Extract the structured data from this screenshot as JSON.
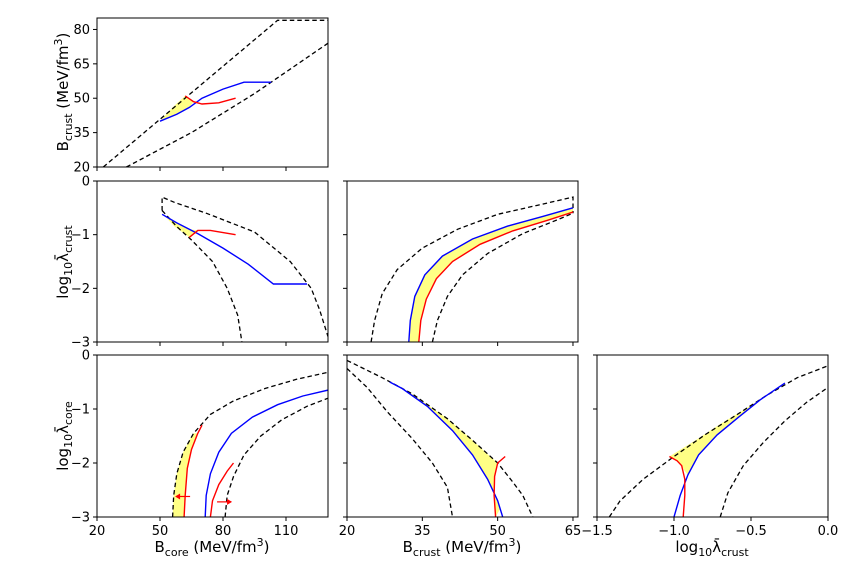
{
  "chart_data": {
    "type": "corner",
    "colors": {
      "region_fill": "#ffff66",
      "blue_curve": "#0000ff",
      "red_curve": "#ff0000",
      "bounds": "#000000"
    },
    "axes": {
      "B_core": {
        "label": "B",
        "sub": "core",
        "unit": " (MeV/fm",
        "unit_end": ")",
        "range": [
          20,
          130
        ],
        "ticks": [
          20,
          50,
          80,
          110
        ],
        "tick_labels": [
          "20",
          "50",
          "80",
          "110"
        ]
      },
      "B_crust": {
        "label": "B",
        "sub": "crust",
        "unit": " (MeV/fm",
        "unit_end": ")",
        "range": [
          20,
          85
        ],
        "ticks": [
          20,
          35,
          50,
          65,
          80
        ],
        "tick_labels": [
          "20",
          "35",
          "50",
          "65",
          "80"
        ],
        "x_ticks": [
          20,
          35,
          50,
          65
        ],
        "x_tick_labels": [
          "20",
          "35",
          "50",
          "65"
        ]
      },
      "lam_crust": {
        "label": "log",
        "sub10": "10",
        "sym": "λ̄",
        "sub": "crust",
        "range": [
          -3,
          0
        ],
        "ticks": [
          -3,
          -2,
          -1,
          0
        ],
        "tick_labels": [
          "−3",
          "−2",
          "−1",
          "0"
        ],
        "x_range": [
          -1.5,
          0
        ],
        "x_ticks": [
          -1.5,
          -1.0,
          -0.5,
          0.0
        ],
        "x_tick_labels": [
          "−1.5",
          "−1.0",
          "−0.5",
          "0.0"
        ]
      },
      "lam_core": {
        "label": "log",
        "sub10": "10",
        "sym": "λ̄",
        "sub": "core",
        "range": [
          -3,
          0
        ],
        "ticks": [
          -3,
          -2,
          -1,
          0
        ],
        "tick_labels": [
          "−3",
          "−2",
          "−1",
          "0"
        ]
      }
    },
    "panels": [
      {
        "id": "Bcore_vs_Bcrust",
        "x": "B_core",
        "y": "B_crust",
        "dashed": [
          [
            [
              23,
              20
            ],
            [
              106,
              84
            ],
            [
              130,
              84
            ]
          ],
          [
            [
              34,
              20
            ],
            [
              65,
              35
            ],
            [
              95,
              52
            ],
            [
              130,
              74
            ]
          ]
        ],
        "blue": [
          [
            50,
            40
          ],
          [
            58,
            43
          ],
          [
            64,
            46
          ],
          [
            70,
            50
          ],
          [
            80,
            54
          ],
          [
            90,
            57
          ],
          [
            103,
            57
          ]
        ],
        "red": [
          [
            62,
            51
          ],
          [
            66,
            48.5
          ],
          [
            70,
            47.5
          ],
          [
            78,
            48
          ],
          [
            86,
            50
          ]
        ],
        "region": [
          [
            50,
            40
          ],
          [
            58,
            43
          ],
          [
            64,
            46
          ],
          [
            66,
            48.5
          ],
          [
            62,
            51
          ],
          [
            56,
            46
          ]
        ]
      },
      {
        "id": "Bcore_vs_lamcrust",
        "x": "B_core",
        "y": "lam_crust",
        "dashed": [
          [
            [
              51,
              -0.55
            ],
            [
              51,
              -0.3
            ],
            [
              57,
              -0.4
            ],
            [
              72,
              -0.6
            ],
            [
              95,
              -0.95
            ],
            [
              112,
              -1.5
            ],
            [
              122,
              -2.0
            ],
            [
              126,
              -2.4
            ],
            [
              130,
              -2.9
            ]
          ],
          [
            [
              51,
              -0.55
            ],
            [
              58,
              -0.85
            ],
            [
              65,
              -1.1
            ],
            [
              75,
              -1.5
            ],
            [
              82,
              -2.0
            ],
            [
              87,
              -2.5
            ],
            [
              89,
              -3.0
            ]
          ]
        ],
        "blue": [
          [
            51,
            -0.62
          ],
          [
            58,
            -0.78
          ],
          [
            68,
            -0.98
          ],
          [
            80,
            -1.25
          ],
          [
            92,
            -1.55
          ],
          [
            104,
            -1.92
          ],
          [
            120,
            -1.92
          ]
        ],
        "red": [
          [
            64,
            -1.05
          ],
          [
            68,
            -0.92
          ],
          [
            74,
            -0.92
          ],
          [
            86,
            -1.0
          ]
        ],
        "region": [
          [
            51,
            -0.6
          ],
          [
            58,
            -0.78
          ],
          [
            64,
            -0.9
          ],
          [
            68,
            -0.92
          ],
          [
            64,
            -1.05
          ],
          [
            57,
            -0.85
          ]
        ]
      },
      {
        "id": "Bcrust_vs_lamcrust",
        "x": "B_crust",
        "y": "lam_crust",
        "dashed": [
          [
            [
              24.8,
              -3.0
            ],
            [
              25.5,
              -2.6
            ],
            [
              27,
              -2.1
            ],
            [
              30,
              -1.65
            ],
            [
              35,
              -1.25
            ],
            [
              42,
              -0.9
            ],
            [
              50,
              -0.62
            ],
            [
              58,
              -0.45
            ],
            [
              65,
              -0.3
            ],
            [
              65,
              -0.6
            ]
          ],
          [
            [
              37,
              -3.0
            ],
            [
              38,
              -2.6
            ],
            [
              40,
              -2.15
            ],
            [
              43,
              -1.75
            ],
            [
              48,
              -1.35
            ],
            [
              55,
              -0.98
            ],
            [
              62,
              -0.72
            ],
            [
              65,
              -0.6
            ]
          ]
        ],
        "blue": [
          [
            32.3,
            -3.0
          ],
          [
            32.6,
            -2.6
          ],
          [
            33.5,
            -2.15
          ],
          [
            35.5,
            -1.75
          ],
          [
            39,
            -1.4
          ],
          [
            45,
            -1.08
          ],
          [
            52,
            -0.84
          ],
          [
            59,
            -0.66
          ],
          [
            65,
            -0.5
          ]
        ],
        "red": [
          [
            34.3,
            -3.0
          ],
          [
            34.7,
            -2.6
          ],
          [
            35.8,
            -2.2
          ],
          [
            37.8,
            -1.82
          ],
          [
            41,
            -1.5
          ],
          [
            46.5,
            -1.18
          ],
          [
            53,
            -0.93
          ],
          [
            60,
            -0.73
          ],
          [
            65,
            -0.58
          ]
        ],
        "region": [
          [
            32.3,
            -3.0
          ],
          [
            32.6,
            -2.6
          ],
          [
            33.5,
            -2.15
          ],
          [
            35.5,
            -1.75
          ],
          [
            39,
            -1.4
          ],
          [
            45,
            -1.08
          ],
          [
            52,
            -0.84
          ],
          [
            59,
            -0.66
          ],
          [
            65,
            -0.5
          ],
          [
            65,
            -0.58
          ],
          [
            60,
            -0.73
          ],
          [
            53,
            -0.93
          ],
          [
            46.5,
            -1.18
          ],
          [
            41,
            -1.5
          ],
          [
            37.8,
            -1.82
          ],
          [
            35.8,
            -2.2
          ],
          [
            34.7,
            -2.6
          ],
          [
            34.3,
            -3.0
          ]
        ]
      },
      {
        "id": "Bcore_vs_lamcore",
        "x": "B_core",
        "y": "lam_core",
        "dashed": [
          [
            [
              56,
              -3.0
            ],
            [
              56.5,
              -2.6
            ],
            [
              58,
              -2.2
            ],
            [
              61,
              -1.8
            ],
            [
              66,
              -1.45
            ],
            [
              74,
              -1.1
            ],
            [
              85,
              -0.85
            ],
            [
              100,
              -0.62
            ],
            [
              115,
              -0.45
            ],
            [
              130,
              -0.32
            ]
          ],
          [
            [
              81,
              -3.0
            ],
            [
              82,
              -2.6
            ],
            [
              85,
              -2.25
            ],
            [
              90,
              -1.85
            ],
            [
              98,
              -1.5
            ],
            [
              108,
              -1.2
            ],
            [
              120,
              -0.95
            ],
            [
              130,
              -0.8
            ]
          ]
        ],
        "blue": [
          [
            71.5,
            -3.0
          ],
          [
            72,
            -2.6
          ],
          [
            74,
            -2.2
          ],
          [
            78,
            -1.8
          ],
          [
            84,
            -1.45
          ],
          [
            94,
            -1.15
          ],
          [
            106,
            -0.92
          ],
          [
            118,
            -0.76
          ],
          [
            130,
            -0.65
          ]
        ],
        "red_curves": [
          [
            [
              61.5,
              -3.0
            ],
            [
              62,
              -2.6
            ],
            [
              63,
              -2.1
            ],
            [
              65,
              -1.75
            ],
            [
              68,
              -1.45
            ],
            [
              70,
              -1.3
            ]
          ],
          [
            [
              74,
              -3.0
            ],
            [
              75,
              -2.7
            ],
            [
              78,
              -2.4
            ],
            [
              82,
              -2.15
            ],
            [
              85,
              -2.0
            ]
          ]
        ],
        "region": [
          [
            56,
            -3.0
          ],
          [
            56.5,
            -2.6
          ],
          [
            58,
            -2.2
          ],
          [
            61,
            -1.8
          ],
          [
            64,
            -1.58
          ],
          [
            66,
            -1.45
          ],
          [
            68,
            -1.45
          ],
          [
            65,
            -1.75
          ],
          [
            63,
            -2.1
          ],
          [
            62,
            -2.6
          ],
          [
            61.5,
            -3.0
          ]
        ],
        "arrows": [
          {
            "at": [
              61,
              -2.62
            ],
            "dir": "left"
          },
          {
            "at": [
              80.5,
              -2.72
            ],
            "dir": "right"
          }
        ]
      },
      {
        "id": "Bcrust_vs_lamcore",
        "x": "B_crust",
        "y": "lam_core",
        "dashed": [
          [
            [
              20,
              -0.1
            ],
            [
              27,
              -0.42
            ],
            [
              33,
              -0.72
            ],
            [
              40,
              -1.18
            ],
            [
              45,
              -1.58
            ],
            [
              50,
              -2.0
            ],
            [
              53,
              -2.35
            ],
            [
              55,
              -2.6
            ],
            [
              57,
              -3.0
            ]
          ],
          [
            [
              20,
              -0.25
            ],
            [
              24,
              -0.6
            ],
            [
              28,
              -1.05
            ],
            [
              33,
              -1.55
            ],
            [
              37,
              -2.0
            ],
            [
              40,
              -2.45
            ],
            [
              41,
              -3.0
            ]
          ]
        ],
        "blue": [
          [
            28.5,
            -0.5
          ],
          [
            31,
            -0.62
          ],
          [
            36,
            -0.95
          ],
          [
            41,
            -1.4
          ],
          [
            45,
            -1.85
          ],
          [
            48,
            -2.3
          ],
          [
            50,
            -2.7
          ],
          [
            51,
            -3.0
          ]
        ],
        "red": [
          [
            49.6,
            -3.0
          ],
          [
            49.3,
            -2.6
          ],
          [
            49.4,
            -2.25
          ],
          [
            50,
            -2.0
          ],
          [
            51.5,
            -1.88
          ]
        ],
        "region": [
          [
            28.5,
            -0.5
          ],
          [
            33,
            -0.72
          ],
          [
            40,
            -1.18
          ],
          [
            45,
            -1.58
          ],
          [
            48.5,
            -1.88
          ],
          [
            50,
            -2.0
          ],
          [
            49.4,
            -2.25
          ],
          [
            49.3,
            -2.6
          ],
          [
            49.6,
            -3.0
          ],
          [
            50.5,
            -2.85
          ],
          [
            48,
            -2.3
          ],
          [
            45,
            -1.85
          ],
          [
            41,
            -1.4
          ],
          [
            36,
            -0.95
          ],
          [
            31,
            -0.62
          ]
        ]
      },
      {
        "id": "lamcrust_vs_lamcore",
        "x": "lam_crust",
        "y": "lam_core",
        "dashed": [
          [
            [
              -1.42,
              -3.0
            ],
            [
              -1.35,
              -2.7
            ],
            [
              -1.2,
              -2.3
            ],
            [
              -1.0,
              -1.88
            ],
            [
              -0.8,
              -1.48
            ],
            [
              -0.6,
              -1.12
            ],
            [
              -0.4,
              -0.75
            ],
            [
              -0.2,
              -0.42
            ],
            [
              0.0,
              -0.2
            ]
          ],
          [
            [
              -0.7,
              -3.0
            ],
            [
              -0.65,
              -2.55
            ],
            [
              -0.55,
              -2.05
            ],
            [
              -0.42,
              -1.62
            ],
            [
              -0.28,
              -1.22
            ],
            [
              -0.14,
              -0.88
            ],
            [
              0.0,
              -0.6
            ]
          ]
        ],
        "blue": [
          [
            -1.0,
            -3.0
          ],
          [
            -0.96,
            -2.6
          ],
          [
            -0.91,
            -2.22
          ],
          [
            -0.84,
            -1.85
          ],
          [
            -0.72,
            -1.48
          ],
          [
            -0.58,
            -1.15
          ],
          [
            -0.44,
            -0.83
          ],
          [
            -0.28,
            -0.52
          ]
        ],
        "red": [
          [
            -1.03,
            -1.88
          ],
          [
            -0.98,
            -1.96
          ],
          [
            -0.95,
            -2.05
          ],
          [
            -0.93,
            -2.3
          ],
          [
            -0.93,
            -2.6
          ],
          [
            -0.94,
            -3.0
          ]
        ],
        "region": [
          [
            -1.03,
            -1.88
          ],
          [
            -0.86,
            -1.58
          ],
          [
            -0.7,
            -1.28
          ],
          [
            -0.55,
            -1.02
          ],
          [
            -0.4,
            -0.75
          ],
          [
            -0.28,
            -0.52
          ],
          [
            -0.44,
            -0.83
          ],
          [
            -0.58,
            -1.15
          ],
          [
            -0.72,
            -1.48
          ],
          [
            -0.84,
            -1.85
          ],
          [
            -0.91,
            -2.22
          ],
          [
            -0.93,
            -2.15
          ],
          [
            -0.95,
            -2.05
          ],
          [
            -0.98,
            -1.96
          ]
        ]
      }
    ]
  }
}
